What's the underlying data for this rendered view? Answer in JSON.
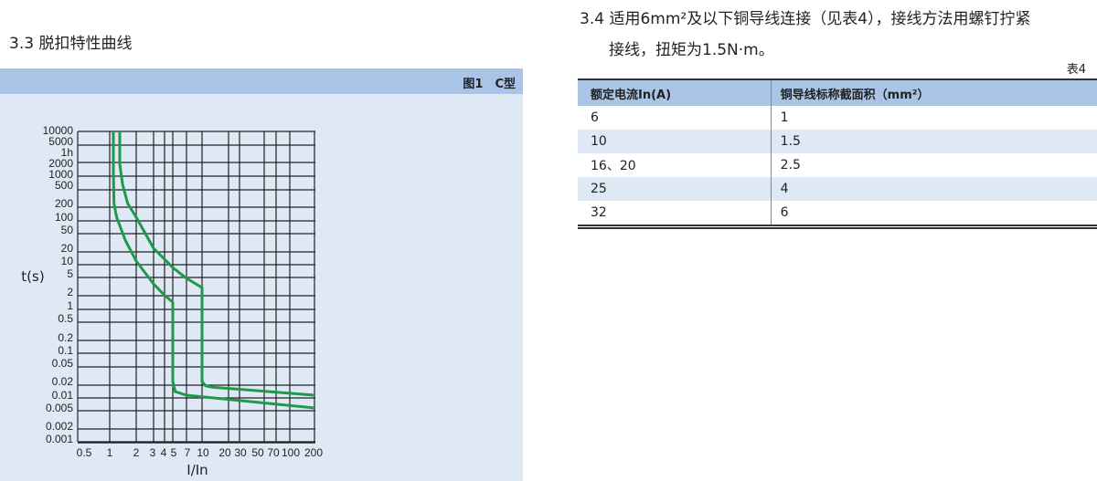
{
  "left": {
    "section_title": "3.3 脱扣特性曲线",
    "figure_title": "图1　C型"
  },
  "right": {
    "section_line1": "3.4 适用6mm²及以下铜导线连接（见表4），接线方法用螺钉拧紧",
    "section_line2": "接线，扭矩为1.5N·m。",
    "table_label": "表4",
    "table": {
      "headers": [
        "额定电流In(A)",
        "铜导线标称截面积（mm²）"
      ],
      "rows": [
        [
          "6",
          "1"
        ],
        [
          "10",
          "1.5"
        ],
        [
          "16、20",
          "2.5"
        ],
        [
          "25",
          "4"
        ],
        [
          "32",
          "6"
        ]
      ]
    }
  },
  "chart_data": {
    "type": "line",
    "title": "",
    "xlabel": "I/In",
    "ylabel": "t(s)",
    "x_ticks": [
      "0.5",
      "1",
      "2",
      "3",
      "4",
      "5",
      "7",
      "10",
      "20",
      "30",
      "50",
      "70",
      "100",
      "200"
    ],
    "y_ticks": [
      "10000",
      "5000",
      "1h",
      "2000",
      "1000",
      "500",
      "200",
      "100",
      "50",
      "20",
      "10",
      "5",
      "2",
      "1",
      "0.5",
      "0.2",
      "0.1",
      "0.05",
      "0.02",
      "0.01",
      "0.005",
      "0.002",
      "0.001"
    ],
    "x_scale": "log",
    "y_scale": "log",
    "grid": true,
    "line_color": "#1f9a4a",
    "series": [
      {
        "points": [
          [
            1.1,
            10000
          ],
          [
            1.1,
            1000
          ],
          [
            1.12,
            200
          ],
          [
            1.2,
            100
          ],
          [
            1.5,
            30
          ],
          [
            2,
            10
          ],
          [
            3,
            3
          ],
          [
            4,
            1.7
          ],
          [
            5,
            1.2
          ],
          [
            5,
            0.02
          ],
          [
            5.3,
            0.012
          ],
          [
            7,
            0.01
          ],
          [
            200,
            0.005
          ]
        ]
      },
      {
        "points": [
          [
            1.3,
            10000
          ],
          [
            1.3,
            1500
          ],
          [
            1.4,
            500
          ],
          [
            1.6,
            200
          ],
          [
            2,
            100
          ],
          [
            3,
            20
          ],
          [
            4,
            11
          ],
          [
            5,
            7
          ],
          [
            7,
            4
          ],
          [
            10,
            2.5
          ],
          [
            10,
            0.02
          ],
          [
            11,
            0.016
          ],
          [
            13,
            0.015
          ],
          [
            200,
            0.01
          ]
        ]
      }
    ]
  }
}
